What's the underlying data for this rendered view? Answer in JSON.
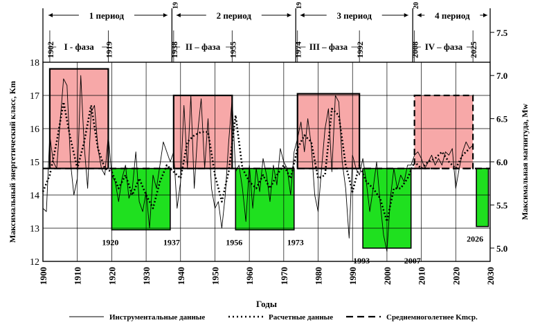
{
  "chart_data": {
    "type": "line",
    "xlabel": "Годы",
    "ylabel_left": "Максимальный энергетический класс, Km",
    "ylabel_right": "Максимальная магнитуда, Mw",
    "xlim": [
      1900,
      2030
    ],
    "ylim_left": [
      12,
      18
    ],
    "ylim_right_ticks": [
      5.0,
      5.5,
      6.0,
      6.5,
      7.0,
      7.5
    ],
    "x_ticks": [
      1900,
      1910,
      1920,
      1930,
      1940,
      1950,
      1960,
      1970,
      1980,
      1990,
      2000,
      2010,
      2020,
      2030
    ],
    "y_ticks_left": [
      12,
      13,
      14,
      15,
      16,
      17,
      18
    ],
    "grid": true,
    "mean_level": 14.8,
    "periods": [
      {
        "label": "1 период",
        "start": 1900,
        "end": 1937
      },
      {
        "label": "2 период",
        "start": 1938,
        "end": 1973
      },
      {
        "label": "3 период",
        "start": 1974,
        "end": 2007
      },
      {
        "label": "4 период",
        "start": 2008,
        "end": 2030
      }
    ],
    "period_boundary_labels": [
      {
        "text": "19",
        "year": 1937.5
      },
      {
        "text": "19",
        "year": 1973.5
      },
      {
        "text": "20",
        "year": 2007.5
      }
    ],
    "phases": [
      {
        "label": "I - фаза",
        "start": 1902,
        "end": 1919,
        "level": 17.8
      },
      {
        "label": "II – фаза",
        "start": 1938,
        "end": 1955,
        "level": 17.0
      },
      {
        "label": "III – фаза",
        "start": 1974,
        "end": 1992,
        "level": 17.05
      },
      {
        "label": "IV – фаза",
        "start": 2008,
        "end": 2025,
        "level": 17.0
      }
    ],
    "phase_year_labels": [
      "1902",
      "1919",
      "1938",
      "1955",
      "1974",
      "1992",
      "2008",
      "2025"
    ],
    "high_boxes": [
      {
        "start": 1902,
        "end": 1919,
        "top": 17.8
      },
      {
        "start": 1938,
        "end": 1955,
        "top": 17.0
      },
      {
        "start": 1974,
        "end": 1992,
        "top": 17.05
      },
      {
        "start": 2008,
        "end": 2025,
        "top": 17.0,
        "dashed": true
      }
    ],
    "low_boxes": [
      {
        "start": 1920,
        "end": 1937,
        "bottom": 12.95,
        "label_start": "1920",
        "label_end": "1937"
      },
      {
        "start": 1956,
        "end": 1973,
        "bottom": 12.95,
        "label_start": "1956",
        "label_end": "1973"
      },
      {
        "start": 1993,
        "end": 2007,
        "bottom": 12.4,
        "label_start": "1993",
        "label_end": "2007"
      },
      {
        "start": 2026,
        "end": 2029.5,
        "bottom": 13.05,
        "label_start": "2026",
        "label_end": ""
      }
    ],
    "colors": {
      "high": "#f7a8a8",
      "low": "#1fe01f",
      "mean": "#000000",
      "grid": "#000000"
    },
    "series": [
      {
        "name": "Инструментальные данные",
        "style": "solid-thin",
        "x": [
          1900,
          1901,
          1902,
          1903,
          1904,
          1905,
          1906,
          1907,
          1908,
          1909,
          1910,
          1911,
          1912,
          1913,
          1914,
          1915,
          1916,
          1917,
          1918,
          1919,
          1920,
          1921,
          1922,
          1923,
          1924,
          1925,
          1926,
          1927,
          1928,
          1929,
          1930,
          1931,
          1932,
          1933,
          1934,
          1935,
          1936,
          1937,
          1938,
          1939,
          1940,
          1941,
          1942,
          1943,
          1944,
          1945,
          1946,
          1947,
          1948,
          1949,
          1950,
          1951,
          1952,
          1953,
          1954,
          1955,
          1956,
          1957,
          1958,
          1959,
          1960,
          1961,
          1962,
          1963,
          1964,
          1965,
          1966,
          1967,
          1968,
          1969,
          1970,
          1971,
          1972,
          1973,
          1974,
          1975,
          1976,
          1977,
          1978,
          1979,
          1980,
          1981,
          1982,
          1983,
          1984,
          1985,
          1986,
          1987,
          1988,
          1989,
          1990,
          1991,
          1992,
          1993,
          1994,
          1995,
          1996,
          1997,
          1998,
          1999,
          2000,
          2001,
          2002,
          2003,
          2004,
          2005,
          2006,
          2007,
          2008,
          2009,
          2010,
          2011,
          2012,
          2013,
          2014,
          2015,
          2016,
          2017,
          2018,
          2019,
          2020,
          2021,
          2022,
          2023,
          2024,
          2025
        ],
        "y": [
          13.6,
          13.5,
          15.8,
          15.0,
          14.8,
          16.2,
          17.5,
          17.3,
          15.0,
          14.0,
          14.5,
          17.6,
          15.5,
          14.2,
          16.5,
          16.7,
          15.4,
          14.8,
          14.6,
          15.8,
          14.6,
          14.4,
          13.8,
          14.5,
          14.9,
          13.9,
          14.2,
          15.3,
          13.8,
          13.5,
          14.1,
          13.0,
          14.6,
          14.2,
          14.9,
          15.6,
          15.3,
          15.0,
          15.3,
          13.6,
          14.4,
          16.7,
          14.8,
          17.0,
          14.2,
          15.9,
          16.9,
          14.8,
          16.3,
          14.2,
          13.6,
          13.8,
          13.0,
          14.0,
          15.6,
          16.9,
          14.7,
          14.9,
          14.2,
          13.2,
          14.9,
          13.6,
          14.8,
          14.1,
          15.1,
          14.6,
          13.8,
          14.9,
          14.3,
          15.4,
          15.0,
          14.8,
          14.0,
          15.3,
          15.7,
          16.2,
          15.3,
          16.3,
          15.5,
          14.0,
          13.5,
          14.8,
          16.0,
          16.6,
          14.7,
          17.0,
          16.8,
          15.0,
          14.2,
          12.7,
          15.2,
          14.8,
          14.6,
          15.1,
          14.4,
          13.5,
          14.2,
          15.0,
          13.8,
          12.8,
          12.3,
          13.9,
          14.8,
          14.2,
          14.6,
          14.4,
          14.9,
          14.9,
          15.2,
          15.3,
          15.1,
          14.8,
          15.0,
          15.2,
          14.9,
          15.1,
          14.9,
          15.3,
          15.2,
          15.4,
          14.2,
          14.8,
          15.3,
          15.6,
          15.4,
          15.5
        ]
      },
      {
        "name": "Расчетные данные",
        "style": "dotted",
        "x": [
          1900,
          1902,
          1904,
          1906,
          1908,
          1910,
          1912,
          1914,
          1916,
          1918,
          1920,
          1922,
          1924,
          1926,
          1928,
          1930,
          1932,
          1934,
          1936,
          1938,
          1940,
          1942,
          1944,
          1946,
          1948,
          1950,
          1952,
          1954,
          1956,
          1958,
          1960,
          1962,
          1964,
          1966,
          1968,
          1970,
          1972,
          1974,
          1976,
          1978,
          1980,
          1982,
          1984,
          1986,
          1988,
          1990,
          1992,
          1994,
          1996,
          1998,
          2000,
          2002,
          2004,
          2006,
          2008,
          2010,
          2012,
          2014,
          2016,
          2018,
          2020,
          2022,
          2024
        ],
        "y": [
          14.1,
          14.6,
          15.6,
          16.8,
          15.7,
          14.8,
          15.6,
          16.7,
          15.4,
          14.8,
          14.7,
          14.2,
          14.6,
          14.0,
          14.5,
          14.0,
          13.6,
          14.4,
          14.9,
          14.7,
          14.5,
          15.6,
          15.8,
          15.9,
          15.9,
          14.6,
          13.8,
          14.7,
          16.4,
          14.8,
          14.4,
          14.2,
          14.6,
          14.2,
          14.6,
          14.9,
          14.5,
          15.4,
          15.8,
          15.6,
          14.5,
          14.6,
          16.6,
          16.4,
          14.9,
          14.1,
          14.9,
          14.4,
          14.2,
          13.9,
          13.2,
          14.2,
          14.2,
          14.5,
          15.0,
          14.8,
          15.0,
          15.1,
          15.3,
          15.0,
          14.8,
          15.2,
          15.4
        ]
      },
      {
        "name": "Среднемноголетнее Kmср.",
        "style": "dashed-thick",
        "x": [
          1900,
          2030
        ],
        "y": [
          14.8,
          14.8
        ]
      }
    ],
    "legend": [
      {
        "label": "Инструментальные данные",
        "style": "solid-thin"
      },
      {
        "label": "Расчетные данные",
        "style": "dotted"
      },
      {
        "label": "Среднемноголетнее Kmср.",
        "style": "dashed-thick"
      }
    ],
    "legend_placement": "bottom"
  }
}
